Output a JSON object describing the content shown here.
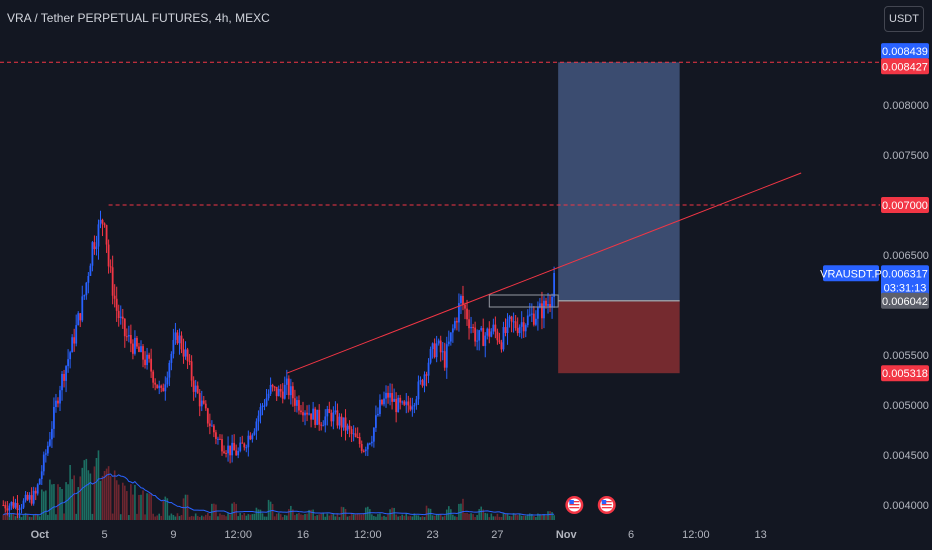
{
  "header": {
    "title": "VRA / Tether PERPETUAL FUTURES, 4h, MEXC",
    "currency_button": "USDT"
  },
  "colors": {
    "background": "#131722",
    "up": "#2962ff",
    "down": "#f23645",
    "volume_ma": "#2962ff",
    "trendline": "#f23645",
    "target_zone": "#3d4f75",
    "stop_zone": "#7a2b30"
  },
  "chart_data": {
    "type": "candlestick",
    "title": "VRA / Tether PERPETUAL FUTURES, 4h, MEXC",
    "ylim": [
      0.0039,
      0.00865
    ],
    "xlim": [
      0,
      170
    ],
    "y_ticks": [
      "0.008000",
      "0.007500",
      "0.006500",
      "0.005500",
      "0.005000",
      "0.004500",
      "0.004000"
    ],
    "x_ticks": [
      {
        "t": 9,
        "label": "Oct"
      },
      {
        "t": 25,
        "label": "5"
      },
      {
        "t": 42,
        "label": "9"
      },
      {
        "t": 58,
        "label": "12:00"
      },
      {
        "t": 74,
        "label": "16"
      },
      {
        "t": 90,
        "label": "12:00"
      },
      {
        "t": 106,
        "label": "23"
      },
      {
        "t": 122,
        "label": "27"
      },
      {
        "t": 139,
        "label": "Nov"
      },
      {
        "t": 155,
        "label": "6"
      },
      {
        "t": 171,
        "label": "12:00"
      },
      {
        "t": 187,
        "label": "13"
      }
    ],
    "keypoints": [
      [
        0,
        0.004
      ],
      [
        5,
        0.00402
      ],
      [
        8,
        0.0041
      ],
      [
        11,
        0.0046
      ],
      [
        14,
        0.0052
      ],
      [
        17,
        0.0056
      ],
      [
        20,
        0.0061
      ],
      [
        22,
        0.0066
      ],
      [
        24,
        0.0068
      ],
      [
        25,
        0.0069
      ],
      [
        26,
        0.0064
      ],
      [
        28,
        0.00595
      ],
      [
        30,
        0.0057
      ],
      [
        33,
        0.00555
      ],
      [
        36,
        0.0054
      ],
      [
        39,
        0.0051
      ],
      [
        41,
        0.00545
      ],
      [
        43,
        0.0057
      ],
      [
        45,
        0.0055
      ],
      [
        47,
        0.0052
      ],
      [
        50,
        0.0049
      ],
      [
        53,
        0.00465
      ],
      [
        56,
        0.00455
      ],
      [
        58,
        0.00452
      ],
      [
        60,
        0.00465
      ],
      [
        62,
        0.0048
      ],
      [
        64,
        0.005
      ],
      [
        66,
        0.00515
      ],
      [
        68,
        0.00512
      ],
      [
        70,
        0.00518
      ],
      [
        72,
        0.00505
      ],
      [
        75,
        0.00495
      ],
      [
        78,
        0.00485
      ],
      [
        81,
        0.0049
      ],
      [
        84,
        0.0048
      ],
      [
        87,
        0.00465
      ],
      [
        89,
        0.00458
      ],
      [
        91,
        0.0047
      ],
      [
        93,
        0.00498
      ],
      [
        95,
        0.0051
      ],
      [
        97,
        0.005
      ],
      [
        99,
        0.00495
      ],
      [
        101,
        0.00505
      ],
      [
        103,
        0.0052
      ],
      [
        105,
        0.00545
      ],
      [
        107,
        0.0056
      ],
      [
        109,
        0.00545
      ],
      [
        111,
        0.00575
      ],
      [
        113,
        0.00605
      ],
      [
        115,
        0.00585
      ],
      [
        117,
        0.00565
      ],
      [
        119,
        0.0057
      ],
      [
        121,
        0.00575
      ],
      [
        123,
        0.00565
      ],
      [
        125,
        0.0058
      ],
      [
        127,
        0.0058
      ],
      [
        129,
        0.00585
      ],
      [
        131,
        0.0059
      ],
      [
        133,
        0.00595
      ],
      [
        135,
        0.00605
      ],
      [
        136,
        0.00632
      ]
    ],
    "volume_spikes": [
      [
        10,
        0.55
      ],
      [
        12,
        0.7
      ],
      [
        14,
        0.5
      ],
      [
        16,
        0.6
      ],
      [
        17,
        0.8
      ],
      [
        19,
        0.65
      ],
      [
        20,
        0.9
      ],
      [
        21,
        0.7
      ],
      [
        23,
        1.0
      ],
      [
        24,
        0.75
      ],
      [
        25,
        0.7
      ],
      [
        26,
        0.85
      ],
      [
        28,
        0.7
      ],
      [
        30,
        0.55
      ],
      [
        32,
        0.5
      ],
      [
        34,
        0.45
      ],
      [
        36,
        0.4
      ],
      [
        40,
        0.35
      ],
      [
        45,
        0.4
      ],
      [
        52,
        0.3
      ],
      [
        57,
        0.25
      ],
      [
        63,
        0.2
      ],
      [
        66,
        0.3
      ],
      [
        71,
        0.2
      ],
      [
        76,
        0.15
      ],
      [
        84,
        0.2
      ],
      [
        90,
        0.2
      ],
      [
        96,
        0.18
      ],
      [
        105,
        0.2
      ],
      [
        110,
        0.2
      ],
      [
        113,
        0.3
      ],
      [
        118,
        0.2
      ],
      [
        124,
        0.1
      ],
      [
        130,
        0.1
      ],
      [
        135,
        0.15
      ]
    ],
    "trendline": {
      "x1": 70,
      "y1": 0.005318,
      "x2": 197,
      "y2": 0.00732
    },
    "long_position": {
      "x_start": 137,
      "x_end": 167,
      "entry": 0.006042,
      "target": 0.008427,
      "stop": 0.005318
    },
    "level_lines": [
      {
        "price": 0.008427,
        "style": "dashed",
        "color": "#f23645",
        "x_start": 0
      },
      {
        "price": 0.007,
        "style": "dashed",
        "color": "#f23645",
        "x_start": 26
      }
    ],
    "price_tags": [
      {
        "price": 0.008439,
        "label": "0.008439",
        "bg": "#2962ff"
      },
      {
        "price": 0.008427,
        "label": "0.008427",
        "bg": "#f23645"
      },
      {
        "price": 0.007,
        "label": "0.007000",
        "bg": "#f23645"
      },
      {
        "price": 0.006317,
        "label": "0.006317",
        "sub": "03:31:13",
        "bg": "#2962ff",
        "symbol": "VRAUSDT.P"
      },
      {
        "price": 0.006042,
        "label": "0.006042",
        "bg": "#5d606b"
      },
      {
        "price": 0.005318,
        "label": "0.005318",
        "bg": "#f23645"
      }
    ],
    "event_markers": [
      {
        "t": 141,
        "icon": "us-flag-icon"
      },
      {
        "t": 149,
        "icon": "us-flag-icon"
      }
    ]
  }
}
